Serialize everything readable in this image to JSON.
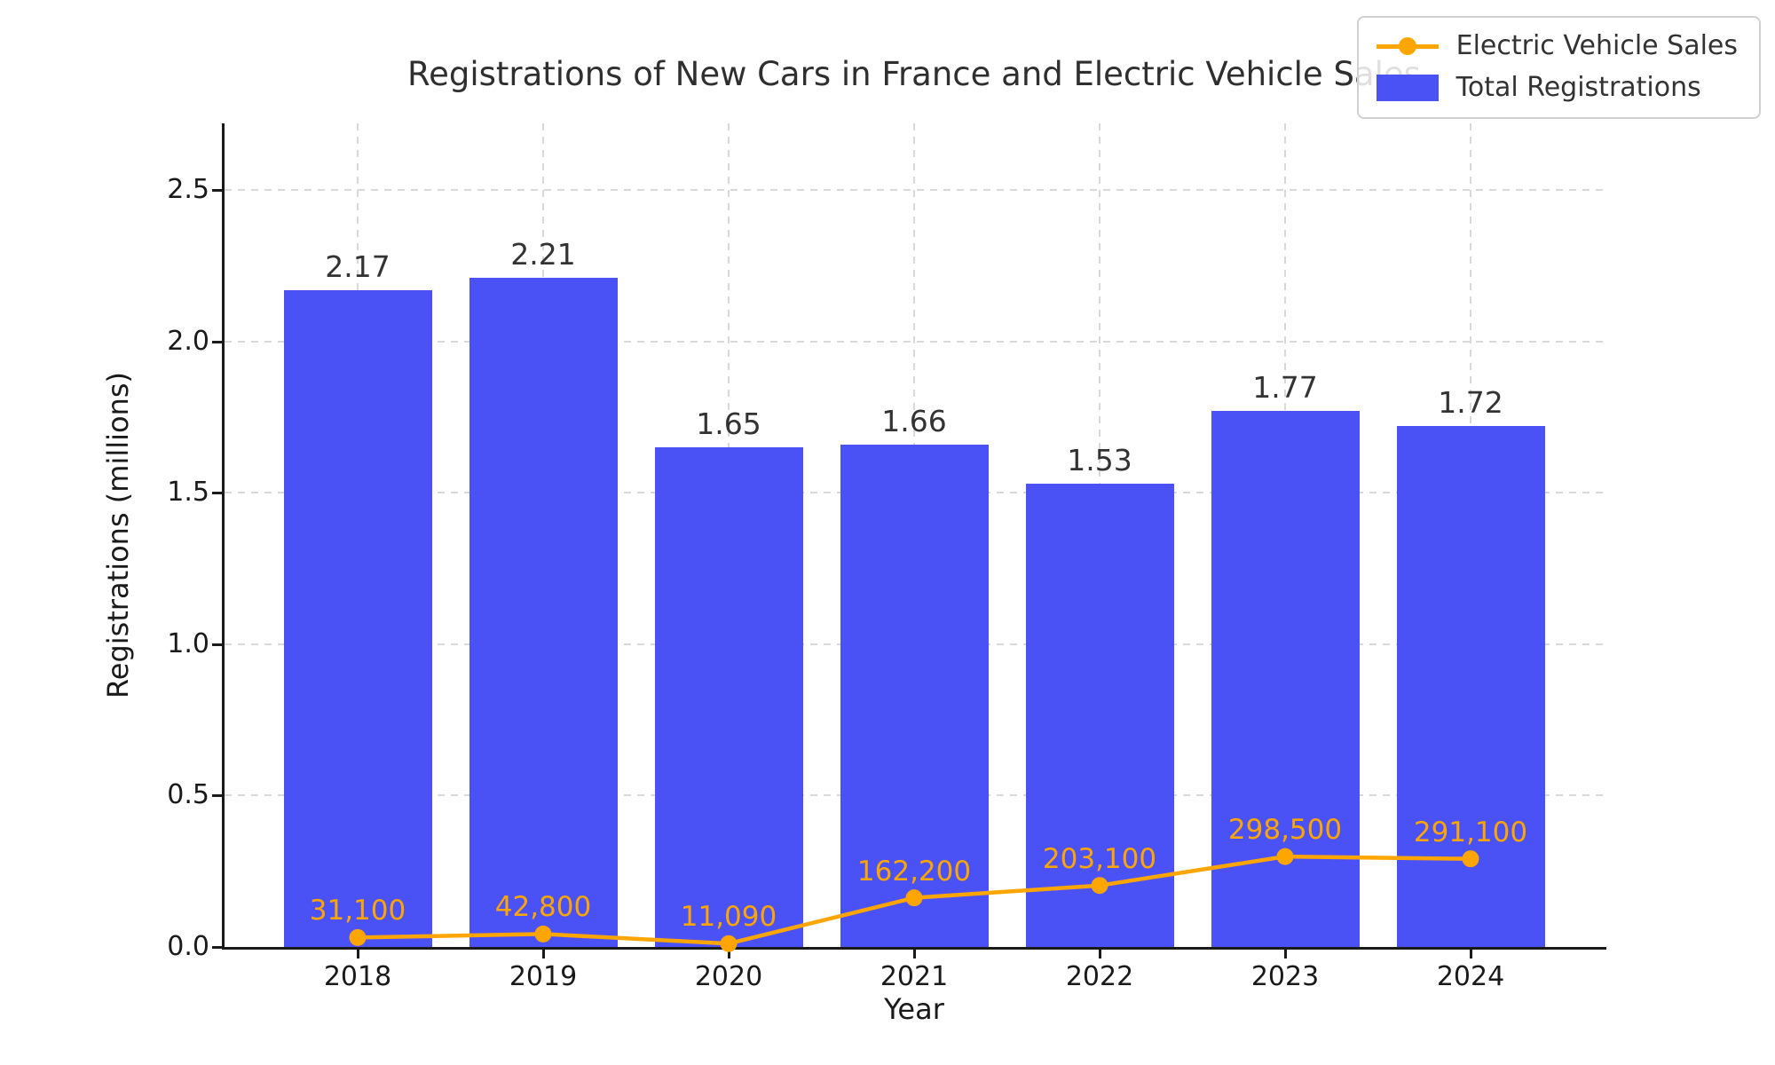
{
  "chart_data": {
    "type": "bar+line combo",
    "title": "Registrations of New Cars in France and Electric Vehicle Sales",
    "xlabel": "Year",
    "ylabel": "Registrations (millions)",
    "categories": [
      "2018",
      "2019",
      "2020",
      "2021",
      "2022",
      "2023",
      "2024"
    ],
    "ylim": [
      0,
      2.72
    ],
    "yticks": [
      0.0,
      0.5,
      1.0,
      1.5,
      2.0,
      2.5
    ],
    "ytick_labels": [
      "0.0",
      "0.5",
      "1.0",
      "1.5",
      "2.0",
      "2.5"
    ],
    "grid": "dashed light-gray, horizontal and vertical",
    "series": [
      {
        "name": "Total Registrations",
        "type": "bar",
        "color": "#4B52F5",
        "values_millions": [
          2.17,
          2.21,
          1.65,
          1.66,
          1.53,
          1.77,
          1.72
        ],
        "bar_labels": [
          "2.17",
          "2.21",
          "1.65",
          "1.66",
          "1.53",
          "1.77",
          "1.72"
        ]
      },
      {
        "name": "Electric Vehicle Sales",
        "type": "line",
        "color": "#FFA500",
        "values_units": [
          31100,
          42800,
          11090,
          162200,
          203100,
          298500,
          291100
        ],
        "point_labels": [
          "31,100",
          "42,800",
          "11,090",
          "162,200",
          "203,100",
          "298,500",
          "291,100"
        ]
      }
    ],
    "legend": {
      "position": "upper right",
      "items": [
        {
          "label": "Electric Vehicle Sales",
          "marker": "line-dot",
          "color": "#FFA500"
        },
        {
          "label": "Total Registrations",
          "marker": "square",
          "color": "#4B52F5"
        }
      ]
    }
  }
}
